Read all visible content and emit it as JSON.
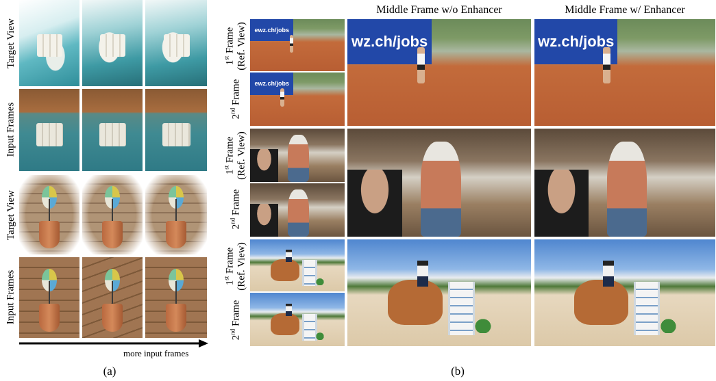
{
  "panel_a": {
    "row_labels": [
      "Target View",
      "Input Frames",
      "Target View",
      "Input Frames"
    ],
    "arrow_label": "more input frames",
    "caption": "(a)"
  },
  "panel_b": {
    "col_headers": [
      "Middle Frame w/o Enhancer",
      "Middle Frame w/ Enhancer"
    ],
    "first_frame": {
      "ordinal": "1",
      "suffix": "st",
      "word": "Frame",
      "note": "(Ref. View)"
    },
    "second_frame": {
      "ordinal": "2",
      "suffix": "nd",
      "word": "Frame"
    },
    "tennis_banner": "wz.ch/jobs",
    "tennis_banner_small": "ewz.ch/jobs",
    "caption": "(b)"
  }
}
